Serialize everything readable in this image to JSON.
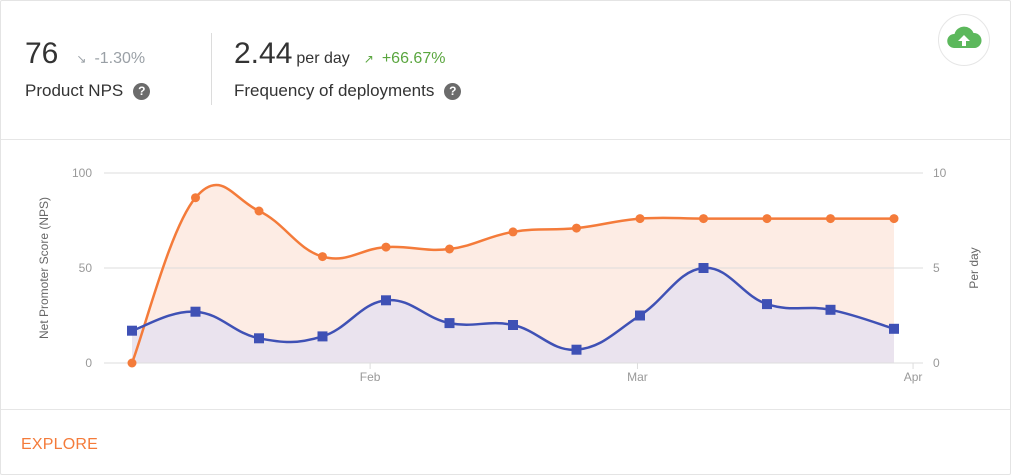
{
  "metrics": [
    {
      "value": "76",
      "unit": "",
      "trend": "-1.30%",
      "direction": "down",
      "label": "Product NPS"
    },
    {
      "value": "2.44",
      "unit": "per day",
      "trend": "+66.67%",
      "direction": "up",
      "label": "Frequency of deployments"
    }
  ],
  "help_glyph": "?",
  "upload_icon": "cloud-upload-icon",
  "footer": {
    "explore_label": "EXPLORE"
  },
  "colors": {
    "nps": "#f47b3a",
    "nps_fill": "#fde9df",
    "deploy": "#3f51b5",
    "deploy_fill": "#e8e2ee",
    "upload": "#5cb85c",
    "grid": "#dddddd",
    "axis_text": "#999999"
  },
  "chart_data": {
    "type": "line",
    "ylabel": "Net Promoter Score (NPS)",
    "y2label": "Per day",
    "ylim": [
      0,
      100
    ],
    "y2lim": [
      0,
      10
    ],
    "yticks": [
      0,
      50,
      100
    ],
    "y2ticks": [
      0,
      5,
      10
    ],
    "x_ticks": [
      "Feb",
      "Mar",
      "Apr"
    ],
    "x_tick_positions": [
      3.75,
      7.96,
      12.3
    ],
    "x_range": [
      0,
      12.3
    ],
    "grid": true,
    "series": [
      {
        "axis": "left",
        "marker": "circle",
        "x": [
          0,
          1,
          2,
          3,
          4,
          5,
          6,
          7,
          8,
          9,
          10,
          11,
          12
        ],
        "values": [
          0,
          87,
          80,
          56,
          61,
          60,
          69,
          71,
          76,
          76,
          76,
          76,
          76
        ]
      },
      {
        "axis": "right",
        "marker": "square",
        "x": [
          0,
          1,
          2,
          3,
          4,
          5,
          6,
          7,
          8,
          9,
          10,
          11,
          12
        ],
        "values": [
          1.7,
          2.7,
          1.3,
          1.4,
          3.3,
          2.1,
          2.0,
          0.7,
          2.5,
          5.0,
          3.1,
          2.8,
          1.8
        ]
      }
    ]
  }
}
